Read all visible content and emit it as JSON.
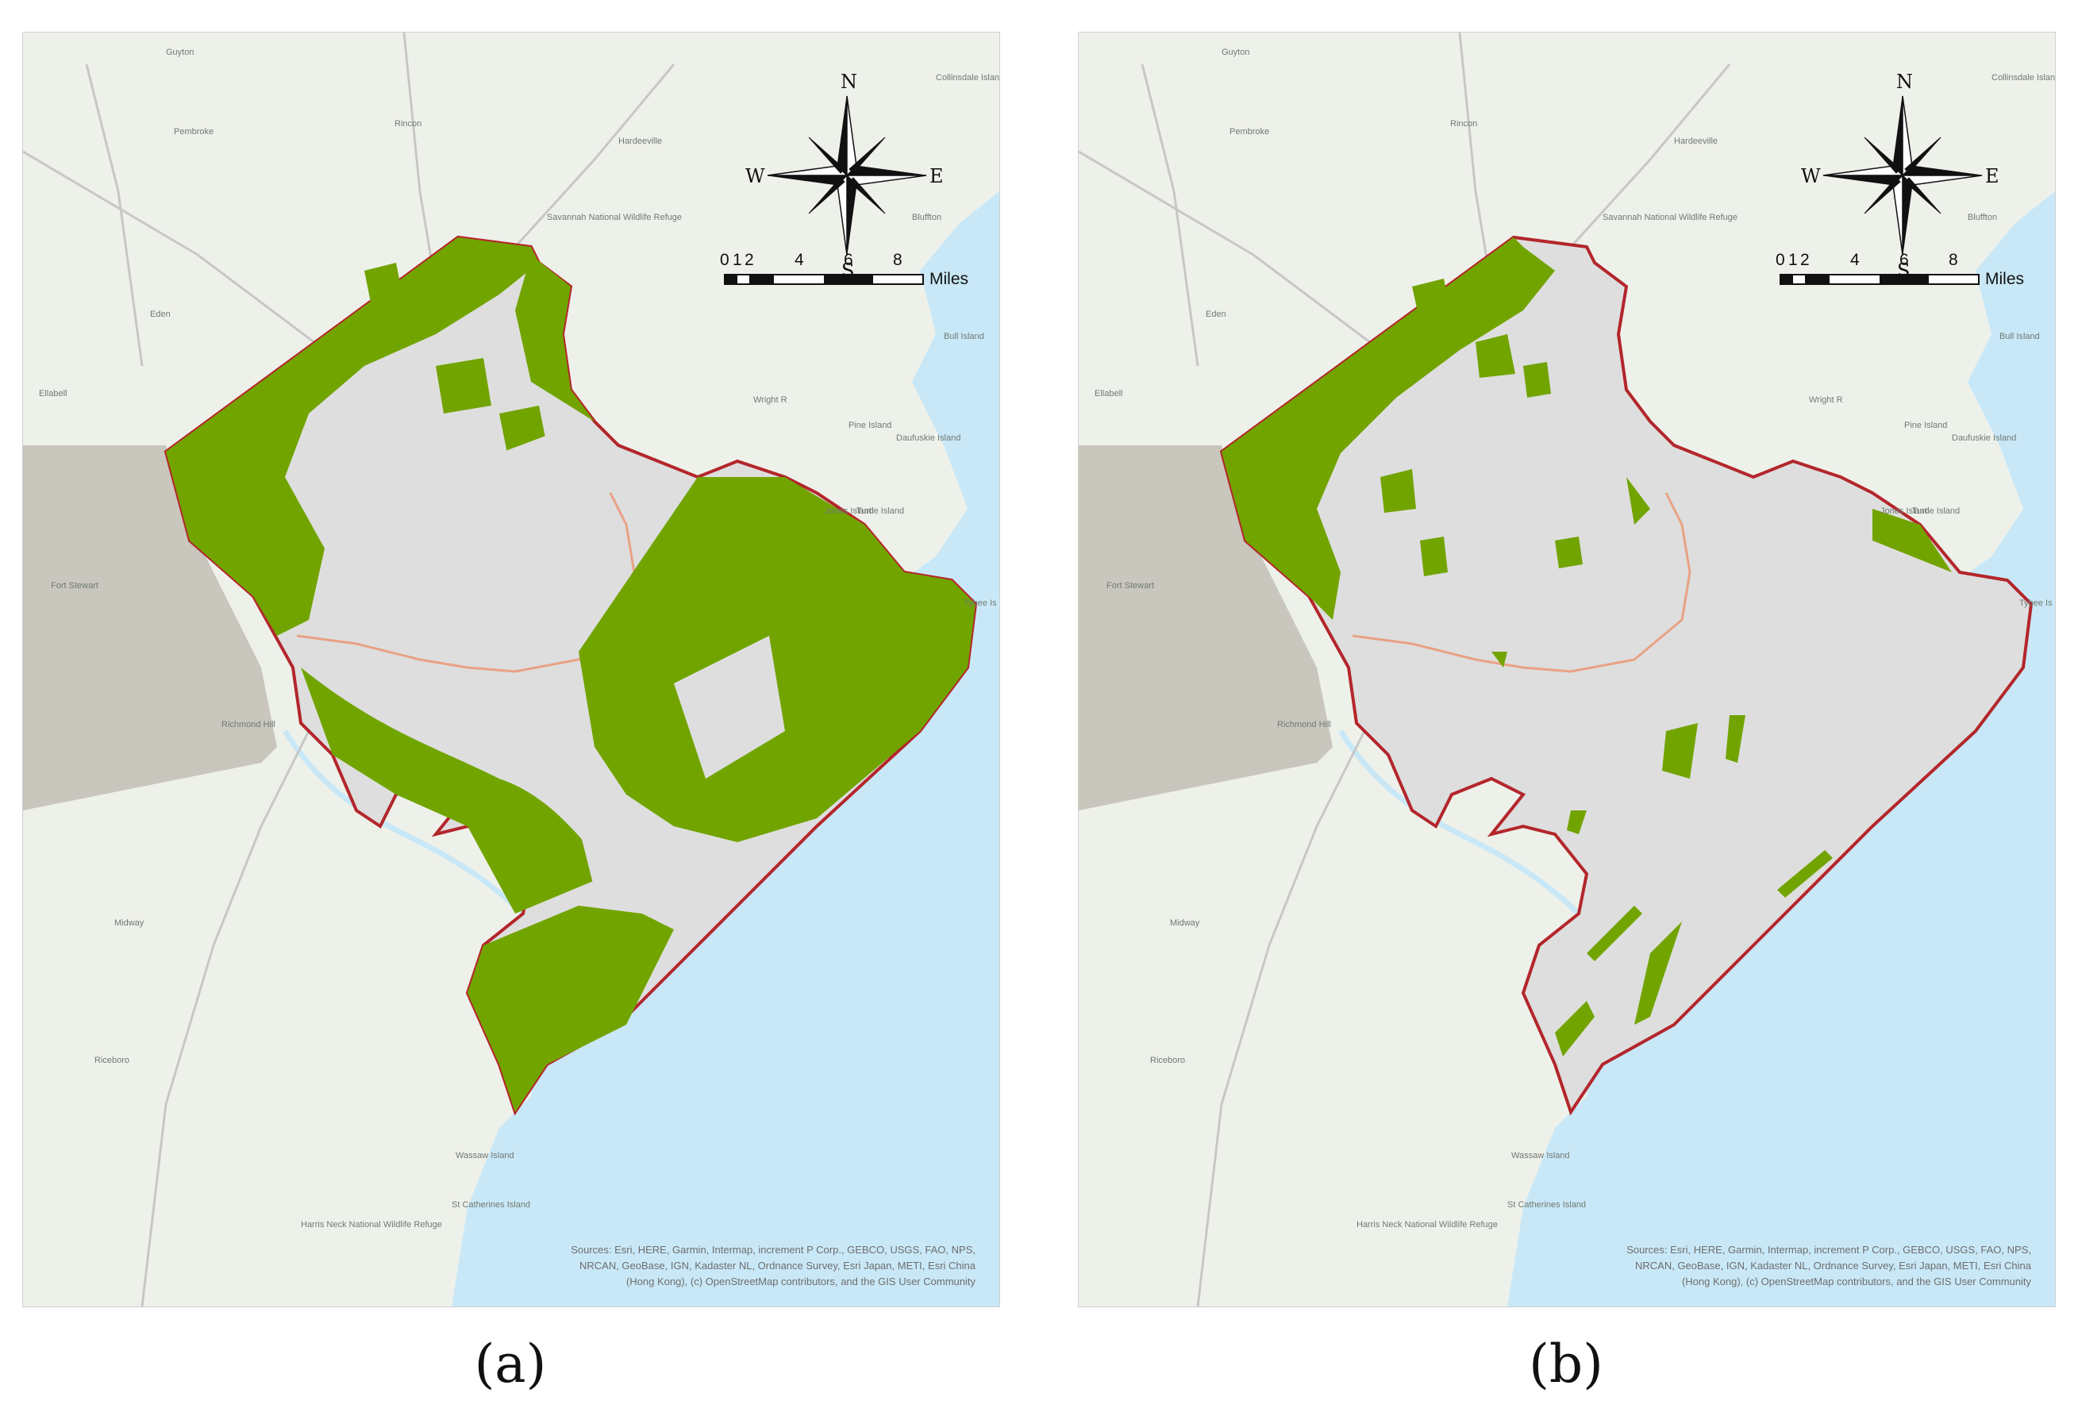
{
  "colors": {
    "land": "#eef1ea",
    "water": "#c9e8f7",
    "study_area_fill": "#dedede",
    "study_area_boundary": "#b3262b",
    "county_line": "#e8a285",
    "forest": "#72a400",
    "military_area": "#c9c6bd",
    "roads": "#c7c7c7"
  },
  "panels": [
    {
      "caption": "(a)",
      "forest_coverage": "extensive",
      "compass": {
        "n": "N",
        "s": "S",
        "e": "E",
        "w": "W"
      },
      "scale_bar": {
        "ticks": [
          "0",
          "1",
          "2",
          "4",
          "6",
          "8"
        ],
        "unit": "Miles"
      },
      "place_labels": [
        "Guyton",
        "Rincon",
        "Hardeeville",
        "Collinsdale Island",
        "Ellabell",
        "Eden",
        "Pembroke",
        "Fort Stewart",
        "Richmond Hill",
        "Midway",
        "Riceboro",
        "Savannah National Wildlife Refuge",
        "Jones Island",
        "Turtle Island",
        "Daufuskie Island",
        "Bull Island",
        "Bluffton",
        "Wright R",
        "Pine Island",
        "Tybee Is",
        "Wassaw Island",
        "St Catherines Island",
        "Harris Neck National Wildlife Refuge"
      ],
      "attribution": [
        "Sources: Esri, HERE, Garmin, Intermap, increment P Corp., GEBCO, USGS, FAO, NPS,",
        "NRCAN, GeoBase, IGN, Kadaster NL, Ordnance Survey, Esri Japan, METI, Esri China",
        "(Hong Kong), (c) OpenStreetMap contributors, and the GIS User Community"
      ]
    },
    {
      "caption": "(b)",
      "forest_coverage": "sparse",
      "compass": {
        "n": "N",
        "s": "S",
        "e": "E",
        "w": "W"
      },
      "scale_bar": {
        "ticks": [
          "0",
          "1",
          "2",
          "4",
          "6",
          "8"
        ],
        "unit": "Miles"
      },
      "place_labels": [
        "Guyton",
        "Rincon",
        "Hardeeville",
        "Collinsdale Island",
        "Ellabell",
        "Eden",
        "Pembroke",
        "Fort Stewart",
        "Richmond Hill",
        "Midway",
        "Riceboro",
        "Savannah National Wildlife Refuge",
        "Jones Island",
        "Turtle Island",
        "Daufuskie Island",
        "Bull Island",
        "Bluffton",
        "Wright R",
        "Pine Island",
        "Tybee Is",
        "Wassaw Island",
        "St Catherines Island",
        "Harris Neck National Wildlife Refuge"
      ],
      "attribution": [
        "Sources: Esri, HERE, Garmin, Intermap, increment P Corp., GEBCO, USGS, FAO, NPS,",
        "NRCAN, GeoBase, IGN, Kadaster NL, Ordnance Survey, Esri Japan, METI, Esri China",
        "(Hong Kong), (c) OpenStreetMap contributors, and the GIS User Community"
      ]
    }
  ]
}
